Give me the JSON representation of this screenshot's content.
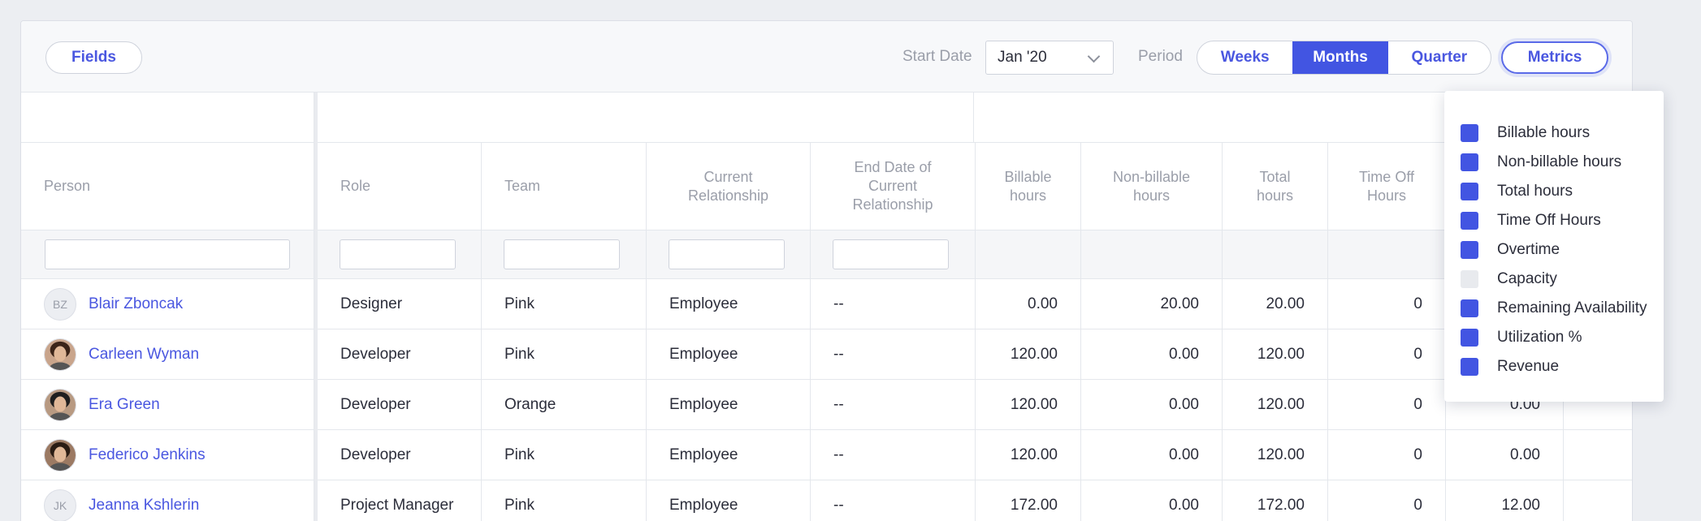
{
  "toolbar": {
    "fields_label": "Fields",
    "start_date_label": "Start Date",
    "start_date_value": "Jan '20",
    "period_label": "Period",
    "period_options": [
      "Weeks",
      "Months",
      "Quarter"
    ],
    "period_selected": "Months",
    "metrics_label": "Metrics"
  },
  "columns": {
    "person": "Person",
    "role": "Role",
    "team": "Team",
    "current_rel": "Current Relationship",
    "end_date": "End Date of Current Relationship",
    "billable": "Billable hours",
    "nonbillable": "Non-billable hours",
    "total": "Total hours",
    "timeoff": "Time Off Hours"
  },
  "rows": [
    {
      "initials": "BZ",
      "name": "Blair Zboncak",
      "role": "Designer",
      "team": "Pink",
      "relationship": "Employee",
      "end_date": "--",
      "billable": "0.00",
      "nonbillable": "20.00",
      "total": "20.00",
      "timeoff": "0",
      "extra": ""
    },
    {
      "initials": "",
      "name": "Carleen Wyman",
      "role": "Developer",
      "team": "Pink",
      "relationship": "Employee",
      "end_date": "--",
      "billable": "120.00",
      "nonbillable": "0.00",
      "total": "120.00",
      "timeoff": "0",
      "extra": ""
    },
    {
      "initials": "",
      "name": "Era Green",
      "role": "Developer",
      "team": "Orange",
      "relationship": "Employee",
      "end_date": "--",
      "billable": "120.00",
      "nonbillable": "0.00",
      "total": "120.00",
      "timeoff": "0",
      "extra": "0.00"
    },
    {
      "initials": "",
      "name": "Federico Jenkins",
      "role": "Developer",
      "team": "Pink",
      "relationship": "Employee",
      "end_date": "--",
      "billable": "120.00",
      "nonbillable": "0.00",
      "total": "120.00",
      "timeoff": "0",
      "extra": "0.00"
    },
    {
      "initials": "JK",
      "name": "Jeanna Kshlerin",
      "role": "Project Manager",
      "team": "Pink",
      "relationship": "Employee",
      "end_date": "--",
      "billable": "172.00",
      "nonbillable": "0.00",
      "total": "172.00",
      "timeoff": "0",
      "extra": "12.00"
    }
  ],
  "metrics_menu": [
    {
      "label": "Billable hours",
      "checked": true
    },
    {
      "label": "Non-billable hours",
      "checked": true
    },
    {
      "label": "Total hours",
      "checked": true
    },
    {
      "label": "Time Off Hours",
      "checked": true
    },
    {
      "label": "Overtime",
      "checked": true
    },
    {
      "label": "Capacity",
      "checked": false
    },
    {
      "label": "Remaining Availability",
      "checked": true
    },
    {
      "label": "Utilization %",
      "checked": true
    },
    {
      "label": "Revenue",
      "checked": true
    }
  ],
  "colors": {
    "accent": "#4255e2",
    "link": "#4a57e0",
    "muted": "#9a9ea9"
  }
}
